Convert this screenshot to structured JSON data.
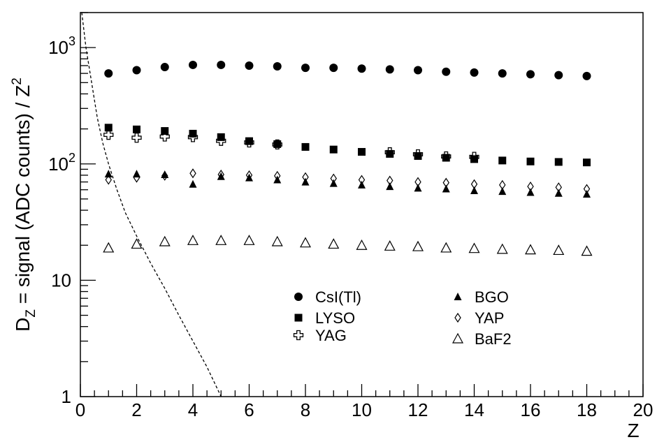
{
  "chart_data": {
    "type": "scatter",
    "xlabel": "Z",
    "ylabel": "D_Z = signal (ADC counts) / Z^2",
    "ylabel_parts": {
      "d": "D",
      "d_sub": "Z",
      "mid": " = signal (ADC counts) / Z",
      "sup": "2"
    },
    "xlim": [
      0,
      20
    ],
    "ylim": [
      1,
      2000
    ],
    "y_scale": "log",
    "x_ticks": [
      "0",
      "2",
      "4",
      "6",
      "8",
      "10",
      "12",
      "14",
      "16",
      "18",
      "20"
    ],
    "y_tick_labels": [
      {
        "value": 1,
        "base": "1",
        "exp": ""
      },
      {
        "value": 10,
        "base": "10",
        "exp": ""
      },
      {
        "value": 100,
        "base": "10",
        "exp": "2"
      },
      {
        "value": 1000,
        "base": "10",
        "exp": "3"
      }
    ],
    "grid": false,
    "legend_position": "lower-center",
    "x": [
      1,
      2,
      3,
      4,
      5,
      6,
      7,
      8,
      9,
      10,
      11,
      12,
      13,
      14,
      15,
      16,
      17,
      18
    ],
    "series": [
      {
        "name": "CsI(Tl)",
        "marker": "circle",
        "values": [
          600,
          640,
          680,
          710,
          710,
          700,
          690,
          670,
          670,
          660,
          650,
          640,
          620,
          610,
          600,
          590,
          580,
          570
        ]
      },
      {
        "name": "BGO",
        "marker": "triangle",
        "values": [
          82,
          82,
          81,
          67,
          78,
          76,
          73,
          70,
          68,
          66,
          64,
          62,
          61,
          59,
          58,
          57,
          56,
          55
        ]
      },
      {
        "name": "LYSO",
        "marker": "square",
        "values": [
          205,
          198,
          192,
          182,
          170,
          157,
          148,
          140,
          133,
          127,
          122,
          117,
          113,
          110,
          107,
          105,
          104,
          103
        ]
      },
      {
        "name": "YAP",
        "marker": "diamond-open",
        "values": [
          73,
          76,
          79,
          83,
          81,
          80,
          79,
          77,
          75,
          73,
          72,
          70,
          69,
          67,
          66,
          64,
          63,
          61
        ]
      },
      {
        "name": "YAG",
        "marker": "cross-open",
        "values": [
          178,
          168,
          172,
          170,
          158,
          153,
          147,
          null,
          null,
          null,
          126,
          121,
          116,
          115,
          null,
          null,
          null,
          null
        ]
      },
      {
        "name": "BaF2",
        "marker": "triangle-open",
        "values": [
          19,
          20.5,
          21.5,
          22,
          22,
          22,
          21.5,
          21,
          20.5,
          20,
          19.7,
          19.5,
          19,
          18.8,
          18.5,
          18.3,
          18.1,
          17.8
        ]
      }
    ],
    "dashed_curve": {
      "x": [
        0.05,
        0.2,
        0.4,
        0.6,
        0.8,
        1.0,
        1.3,
        1.6,
        2.0,
        2.5,
        3.0,
        3.5,
        4.0,
        4.5,
        5.0
      ],
      "y": [
        2000,
        1000,
        500,
        250,
        150,
        100,
        60,
        38,
        24,
        14,
        8.5,
        5,
        3,
        1.8,
        1.0
      ]
    }
  }
}
